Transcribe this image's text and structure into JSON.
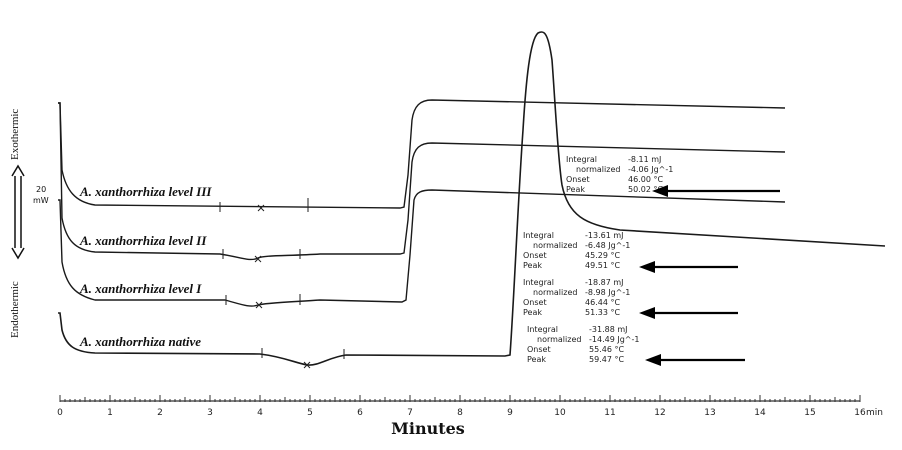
{
  "chart_data": {
    "type": "line",
    "xlabel": "Minutes",
    "x_unit": "min",
    "xlim": [
      0,
      16
    ],
    "x_ticks": [
      "0",
      "1",
      "2",
      "3",
      "4",
      "5",
      "6",
      "7",
      "8",
      "9",
      "10",
      "11",
      "12",
      "13",
      "14",
      "15",
      "16"
    ],
    "scale_bar": {
      "value": "20",
      "unit": "mW"
    },
    "side_labels": {
      "top": "Exothermic",
      "bottom": "Endothermic"
    },
    "series": [
      {
        "name": "A. xanthorrhiza level III",
        "annotation": [
          [
            "Integral",
            "-8.11 mJ"
          ],
          [
            "normalized",
            "-4.06 Jg^-1"
          ],
          [
            "Onset",
            "46.00 °C"
          ],
          [
            "Peak",
            "50.02 °C"
          ]
        ]
      },
      {
        "name": "A. xanthorrhiza level II",
        "annotation": [
          [
            "Integral",
            "-13.61 mJ"
          ],
          [
            "normalized",
            "-6.48 Jg^-1"
          ],
          [
            "Onset",
            "45.29 °C"
          ],
          [
            "Peak",
            "49.51 °C"
          ]
        ]
      },
      {
        "name": "A. xanthorrhiza level I",
        "annotation": [
          [
            "Integral",
            "-18.87 mJ"
          ],
          [
            "normalized",
            "-8.98 Jg^-1"
          ],
          [
            "Onset",
            "46.44 °C"
          ],
          [
            "Peak",
            "51.33 °C"
          ]
        ]
      },
      {
        "name": "A. xanthorrhiza native",
        "annotation": [
          [
            "Integral",
            "-31.88 mJ"
          ],
          [
            "normalized",
            "-14.49 Jg^-1"
          ],
          [
            "Onset",
            "55.46 °C"
          ],
          [
            "Peak",
            "59.47 °C"
          ]
        ]
      }
    ]
  }
}
